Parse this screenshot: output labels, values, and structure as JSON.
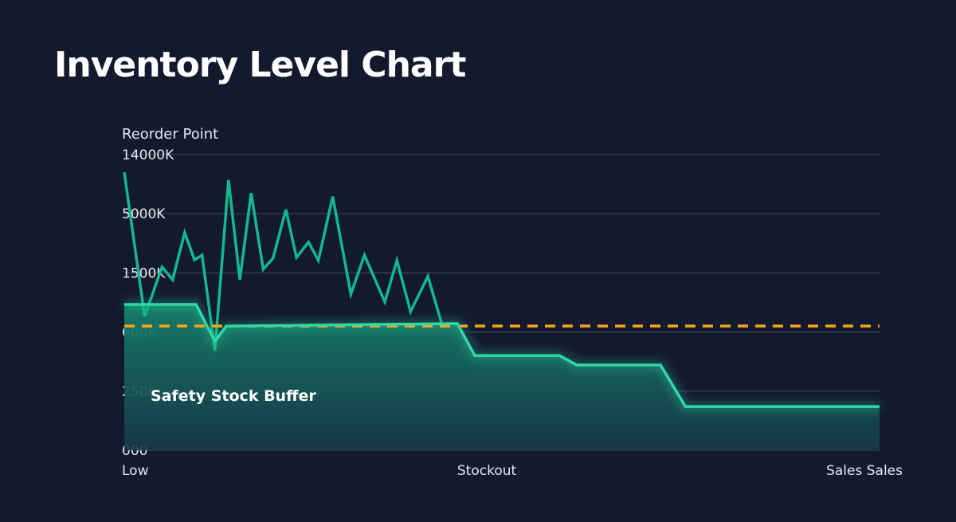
{
  "chart_data": {
    "type": "line",
    "title": "Inventory Level Chart",
    "ylabel": "Reorder Point",
    "xlabel": "",
    "y_ticks": [
      "000",
      "250K",
      "600K",
      "1500K",
      "5000K",
      "14000K"
    ],
    "y_tick_values": [
      0,
      250,
      600,
      1500,
      5000,
      14000
    ],
    "y_scale": "non-linear (evenly spaced ticks)",
    "y_units": "K",
    "x_ticks": [
      "Low",
      "Stockout",
      "Sales Sales"
    ],
    "x_tick_values": [
      0,
      48,
      97
    ],
    "xlim": [
      0,
      100
    ],
    "grid": true,
    "annotation": "Safety Stock Buffer",
    "series": [
      {
        "style": "spiky",
        "color": "#13b890",
        "x": [
          0,
          2.7,
          5.0,
          6.4,
          8.0,
          9.3,
          10.3,
          12.0,
          13.8,
          15.3,
          16.8,
          18.4,
          19.7,
          21.4,
          22.8,
          24.4,
          25.7,
          27.6,
          30.0,
          31.8,
          34.5,
          36.1,
          37.9,
          40.2,
          42.0
        ],
        "y": [
          11300,
          838,
          1850,
          1396,
          3880,
          2270,
          2550,
          490,
          10130,
          1396,
          8150,
          1710,
          2375,
          5630,
          2410,
          3320,
          2235,
          7610,
          1176,
          2550,
          1056,
          2235,
          910,
          1446,
          740
        ]
      },
      {
        "style": "step-filled",
        "color": "#2fd9a6",
        "x": [
          0,
          9.5,
          12.0,
          13.5,
          44.1,
          46.4,
          57.6,
          59.9,
          71.0,
          74.3,
          100
        ],
        "y": [
          1020,
          1020,
          546,
          690,
          729,
          461,
          461,
          405,
          405,
          185,
          185
        ]
      }
    ],
    "reference_line": {
      "y": 690,
      "color": "#f5a623",
      "style": "dashed"
    }
  }
}
